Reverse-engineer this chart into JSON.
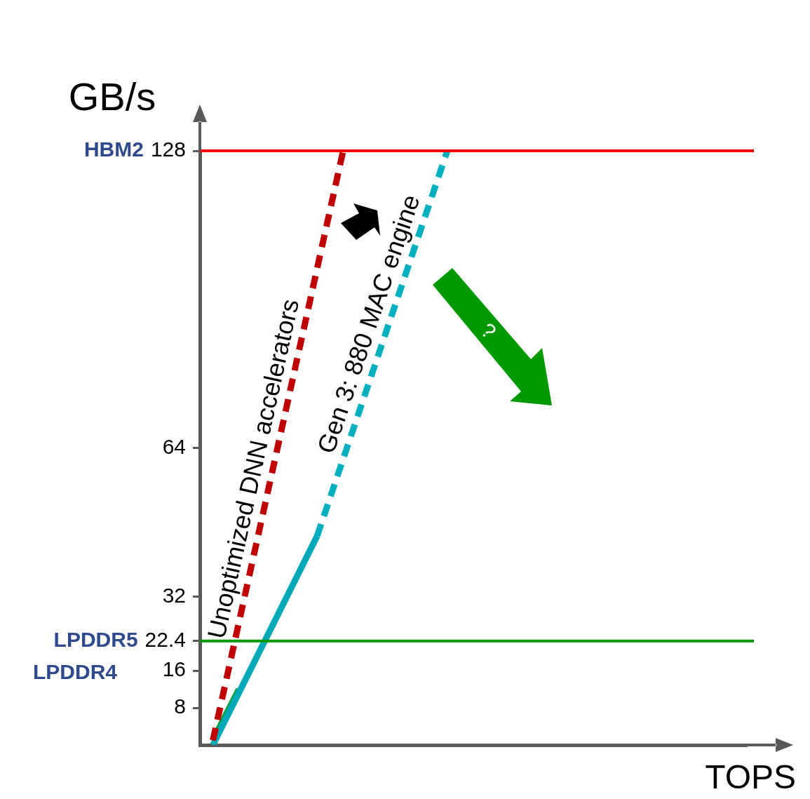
{
  "chart_data": {
    "type": "line",
    "xlabel": "TOPS",
    "ylabel": "GB/s",
    "categories": [
      null,
      null,
      null,
      null,
      null,
      null,
      null,
      null,
      null,
      null,
      null,
      null,
      null,
      null,
      null,
      null,
      null,
      null,
      null,
      null,
      null
    ],
    "ylim": [
      0,
      128
    ],
    "yticks": [
      8,
      16,
      22.4,
      32,
      64,
      128
    ],
    "tick_labels": "y",
    "grid": false,
    "legend": false,
    "marker": "none",
    "series": [
      {
        "name": "Unoptimized DNN accelerators",
        "color": "#c00000",
        "line_style": "dashed",
        "values": [
          1,
          null,
          null,
          null,
          null,
          128,
          null,
          null,
          null,
          null,
          null,
          null,
          null,
          null,
          null,
          null,
          null,
          null,
          null,
          null,
          null
        ]
      },
      {
        "color": "#00a8b8",
        "line_style": "solid",
        "values": [
          0,
          null,
          null,
          null,
          45,
          null,
          null,
          null,
          null,
          null,
          null,
          null,
          null,
          null,
          null,
          null,
          null,
          null,
          null,
          null,
          null
        ]
      },
      {
        "name": "Gen 3: 880 MAC engine",
        "color": "#00b0c0",
        "line_style": "dashed",
        "values": [
          null,
          null,
          null,
          null,
          45,
          null,
          null,
          null,
          null,
          128,
          null,
          null,
          null,
          null,
          null,
          null,
          null,
          null,
          null,
          null,
          null
        ]
      },
      {
        "color": "#00a040",
        "line_style": "solid",
        "values": [
          1,
          12,
          null,
          null,
          null,
          null,
          null,
          null,
          null,
          null,
          null,
          null,
          null,
          null,
          null,
          null,
          null,
          null,
          null,
          null,
          null
        ]
      }
    ],
    "ref_lines": [
      {
        "axis": "y",
        "value": 128,
        "label": "HBM2",
        "color": "#ff0000"
      },
      {
        "axis": "y",
        "value": 22.4,
        "label": "LPDDR5",
        "color": "#009900"
      }
    ],
    "annotations": [
      "LPDDR4",
      "?"
    ]
  }
}
